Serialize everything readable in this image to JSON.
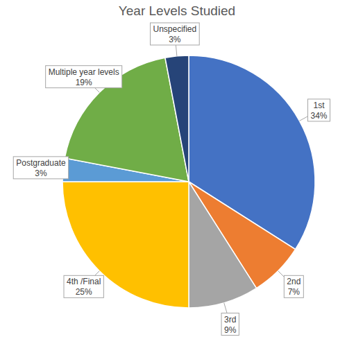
{
  "chart_data": {
    "type": "pie",
    "title": "Year Levels Studied",
    "categories": [
      "1st",
      "2nd",
      "3rd",
      "4th /Final",
      "Postgraduate",
      "Multiple year levels",
      "Unspecified"
    ],
    "values": [
      34,
      7,
      9,
      25,
      3,
      19,
      3
    ],
    "value_labels": [
      "34%",
      "7%",
      "9%",
      "25%",
      "3%",
      "19%",
      "3%"
    ],
    "colors": [
      "#4472c4",
      "#ed7d31",
      "#a5a5a5",
      "#ffc000",
      "#5b9bd5",
      "#70ad47",
      "#264478"
    ],
    "data_labels": true
  }
}
